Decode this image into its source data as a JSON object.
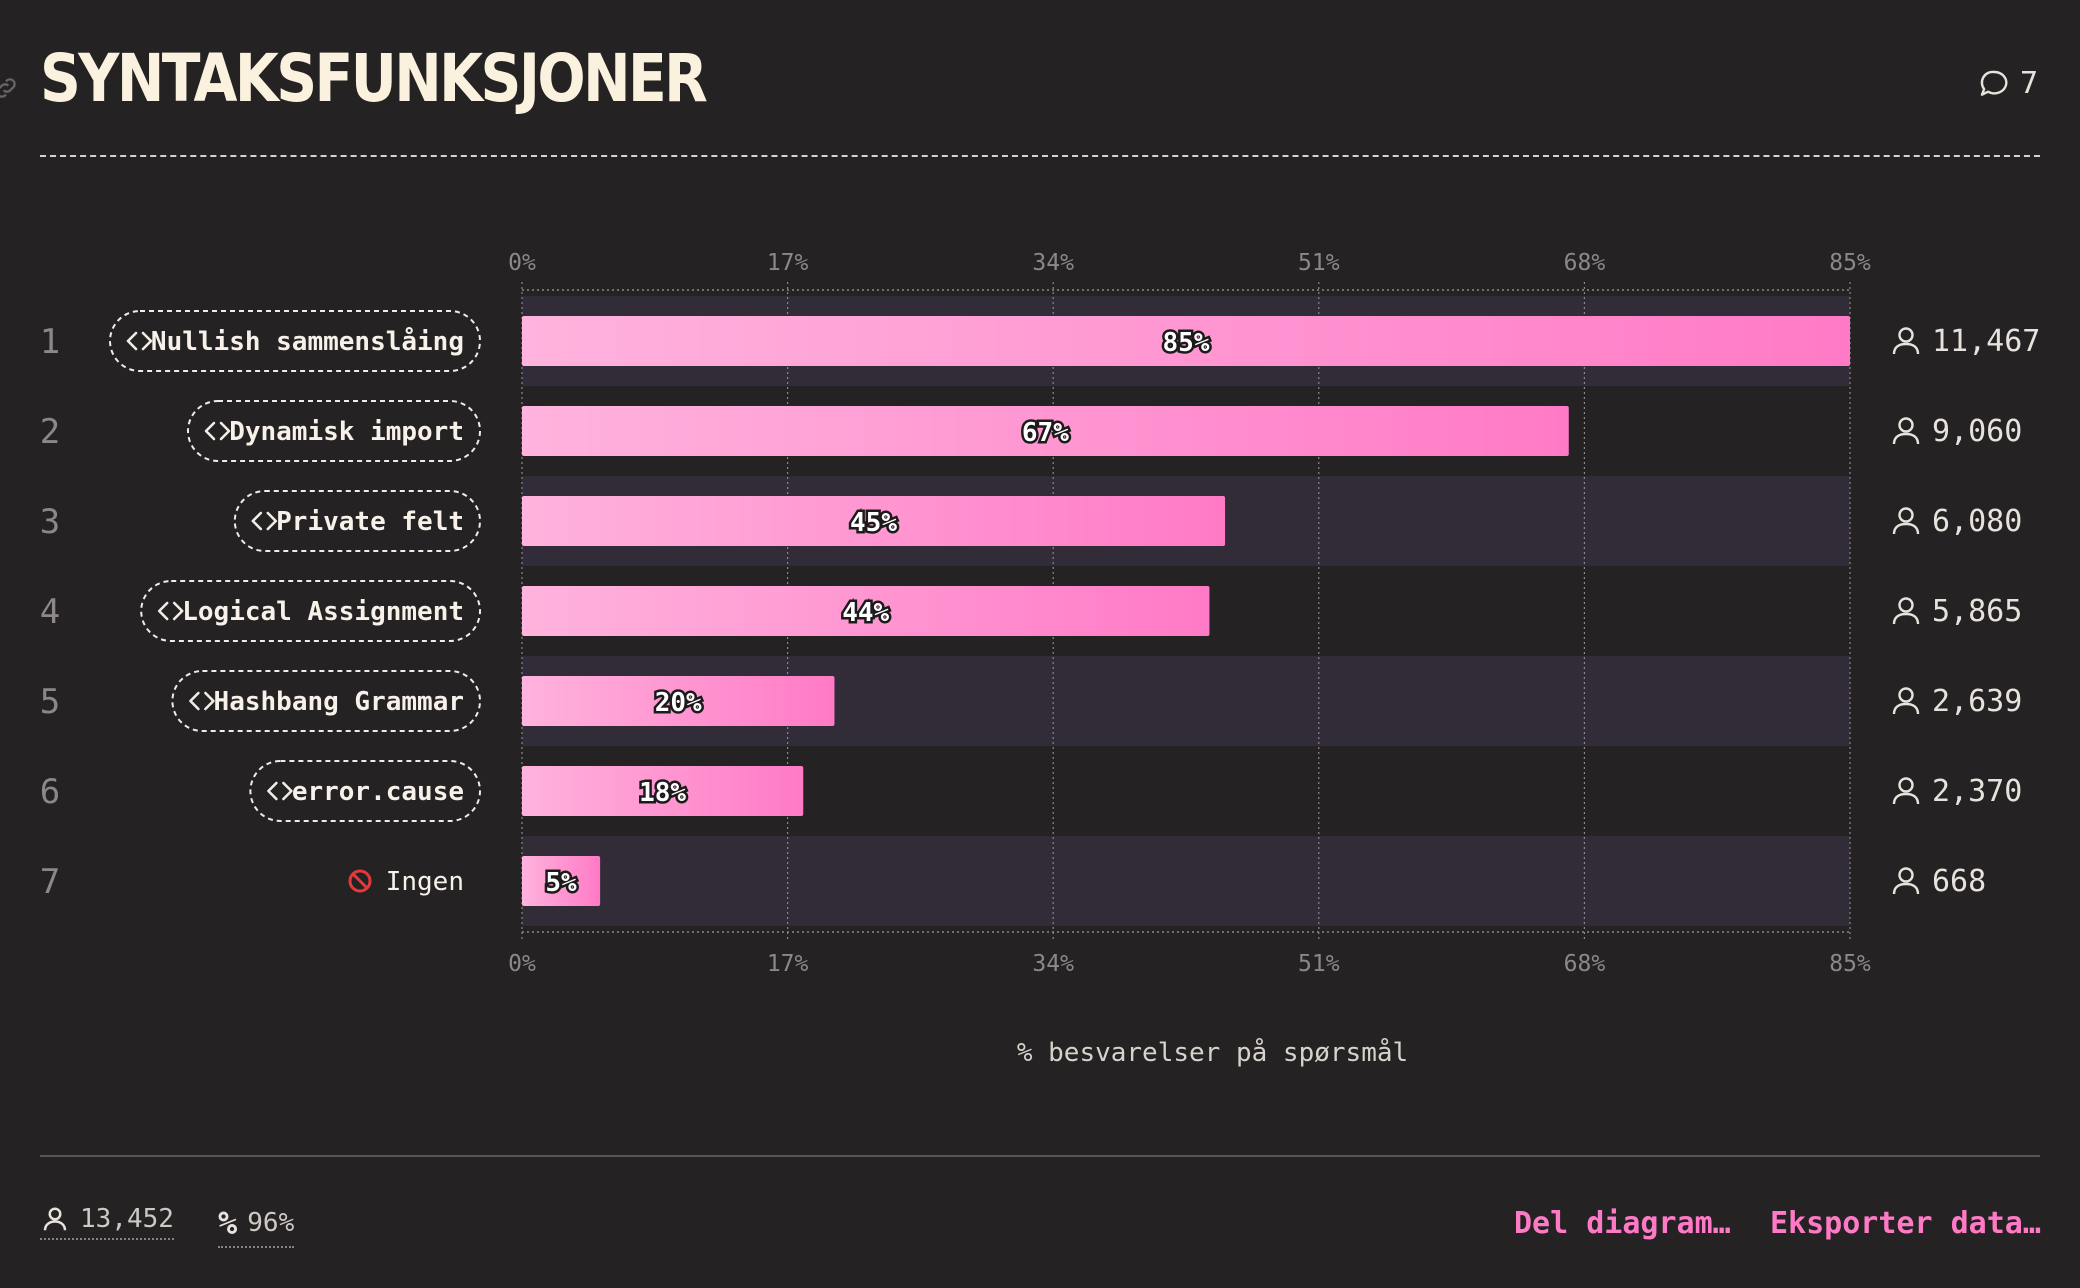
{
  "header": {
    "title": "SYNTAKSFUNKSJONER",
    "comment_count": "7"
  },
  "chart_data": {
    "type": "bar",
    "orientation": "horizontal",
    "categories": [
      "Nullish sammenslåing",
      "Dynamisk import",
      "Private felt",
      "Logical Assignment",
      "Hashbang Grammar",
      "error.cause",
      "Ingen"
    ],
    "ranks": [
      "1",
      "2",
      "3",
      "4",
      "5",
      "6",
      "7"
    ],
    "values": [
      85,
      67,
      45,
      44,
      20,
      18,
      5
    ],
    "value_labels": [
      "85%",
      "67%",
      "45%",
      "44%",
      "20%",
      "18%",
      "5%"
    ],
    "counts": [
      "11,467",
      "9,060",
      "6,080",
      "5,865",
      "2,639",
      "2,370",
      "668"
    ],
    "xlim": [
      0,
      85
    ],
    "xticks": [
      "0%",
      "17%",
      "34%",
      "51%",
      "68%",
      "85%"
    ],
    "xlabel": "% besvarelser på spørsmål",
    "grid": true
  },
  "footer": {
    "respondents": "13,452",
    "percent": "96%",
    "share_label": "Del diagram…",
    "export_label": "Eksporter data…"
  },
  "colors": {
    "background": "#252223",
    "bar_start": "#ffb3dd",
    "bar_end": "#ff7ac6",
    "stripe": "#312c38",
    "accent": "#ff7ac6"
  }
}
